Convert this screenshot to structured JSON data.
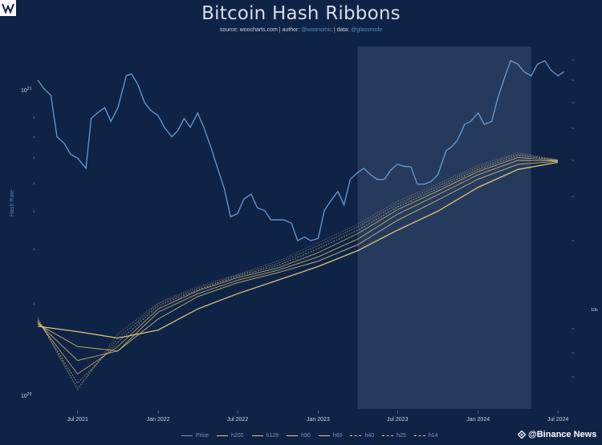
{
  "title": "Bitcoin Hash Ribbons",
  "subtitle": {
    "source_label": "source: woocharts.com",
    "sep1": " | ",
    "author_label": "author: ",
    "author": "@woonomic",
    "sep2": " | ",
    "data_label": "data: ",
    "data": "@glassnode"
  },
  "watermark": "@Binance News",
  "colors": {
    "background": "#0f2346",
    "highlight": "#2a3e62",
    "price": "#6a9bd0",
    "ribbon": "#e3cc7a",
    "text": "#c8d4e8"
  },
  "chart_data": {
    "type": "line",
    "title": "Bitcoin Hash Ribbons",
    "ylabel": "Hash Rate",
    "y_scale": "log",
    "x_ticks": [
      "Jul 2021",
      "Jan 2022",
      "Jul 2022",
      "Jan 2023",
      "Jul 2023",
      "Jan 2024",
      "Jul 2024"
    ],
    "left_axis_ticks": [
      "10^21",
      "10^20"
    ],
    "right_axis_ticks": [
      "10k"
    ],
    "highlight_region": {
      "x_start": "2023-04",
      "x_end": "2024-05"
    },
    "series": [
      {
        "name": "Price",
        "x": [
          "2021-04",
          "2021-04-15",
          "2021-05",
          "2021-05-15",
          "2021-06",
          "2021-06-15",
          "2021-07",
          "2021-07-20",
          "2021-08",
          "2021-08-15",
          "2021-09",
          "2021-09-15",
          "2021-10",
          "2021-10-20",
          "2021-11",
          "2021-11-15",
          "2021-12",
          "2021-12-15",
          "2022-01",
          "2022-01-15",
          "2022-02",
          "2022-02-15",
          "2022-03",
          "2022-03-15",
          "2022-04",
          "2022-04-15",
          "2022-05",
          "2022-05-15",
          "2022-06",
          "2022-06-15",
          "2022-07",
          "2022-07-15",
          "2022-08",
          "2022-08-15",
          "2022-09",
          "2022-09-15",
          "2022-10",
          "2022-10-15",
          "2022-11",
          "2022-11-15",
          "2022-12",
          "2022-12-15",
          "2023-01",
          "2023-01-15",
          "2023-02",
          "2023-02-15",
          "2023-03",
          "2023-03-15",
          "2023-04",
          "2023-04-15",
          "2023-05",
          "2023-05-15",
          "2023-06",
          "2023-06-15",
          "2023-07",
          "2023-07-15",
          "2023-08",
          "2023-08-15",
          "2023-09",
          "2023-09-15",
          "2023-10",
          "2023-10-20",
          "2023-11",
          "2023-11-15",
          "2023-12",
          "2023-12-15",
          "2024-01",
          "2024-01-15",
          "2024-02",
          "2024-02-15",
          "2024-03",
          "2024-03-15",
          "2024-04",
          "2024-04-15",
          "2024-05",
          "2024-05-15",
          "2024-06",
          "2024-06-15",
          "2024-07",
          "2024-07-15"
        ],
        "values": [
          60000,
          56000,
          53000,
          38000,
          36000,
          33000,
          32000,
          29500,
          44000,
          46000,
          48000,
          43000,
          48000,
          62000,
          63000,
          58000,
          50000,
          47000,
          45000,
          41000,
          38000,
          40000,
          44000,
          41000,
          46000,
          41000,
          35000,
          30000,
          25000,
          20000,
          20500,
          23000,
          24000,
          21500,
          21000,
          19500,
          19500,
          19500,
          19000,
          16500,
          17000,
          16500,
          16800,
          21000,
          23000,
          24500,
          22000,
          27000,
          28500,
          29500,
          28000,
          27000,
          27000,
          29000,
          30500,
          30000,
          29800,
          26000,
          26000,
          26500,
          28000,
          34000,
          35000,
          37000,
          42000,
          43000,
          46000,
          42000,
          43000,
          52000,
          61000,
          70000,
          68000,
          64000,
          62000,
          68000,
          70000,
          65000,
          62000,
          64000
        ]
      },
      {
        "name": "h200",
        "x": [
          "2021-04",
          "2021-07",
          "2021-10",
          "2022-01",
          "2022-04",
          "2022-07",
          "2022-10",
          "2023-01",
          "2023-04",
          "2023-07",
          "2023-10",
          "2024-01",
          "2024-04",
          "2024-07"
        ],
        "values": [
          165,
          158,
          150,
          160,
          190,
          215,
          240,
          268,
          305,
          360,
          420,
          510,
          590,
          625
        ]
      },
      {
        "name": "h128",
        "x": [
          "2021-04",
          "2021-07",
          "2021-10",
          "2022-01",
          "2022-04",
          "2022-07",
          "2022-10",
          "2023-01",
          "2023-04",
          "2023-07",
          "2023-10",
          "2024-01",
          "2024-04",
          "2024-07"
        ],
        "values": [
          168,
          140,
          135,
          175,
          210,
          235,
          255,
          280,
          320,
          390,
          460,
          545,
          615,
          630
        ]
      },
      {
        "name": "h90",
        "x": [
          "2021-04",
          "2021-07",
          "2021-10",
          "2022-01",
          "2022-04",
          "2022-07",
          "2022-10",
          "2023-01",
          "2023-04",
          "2023-07",
          "2023-10",
          "2024-01",
          "2024-04",
          "2024-07"
        ],
        "values": [
          170,
          125,
          135,
          185,
          215,
          240,
          260,
          290,
          335,
          410,
          480,
          565,
          635,
          632
        ]
      },
      {
        "name": "h60",
        "x": [
          "2021-04",
          "2021-07",
          "2021-10",
          "2022-01",
          "2022-04",
          "2022-07",
          "2022-10",
          "2023-01",
          "2023-04",
          "2023-07",
          "2023-10",
          "2024-01",
          "2024-04",
          "2024-07"
        ],
        "values": [
          172,
          112,
          140,
          190,
          220,
          245,
          265,
          300,
          350,
          425,
          495,
          580,
          650,
          634
        ]
      },
      {
        "name": "h40",
        "x": [
          "2021-04",
          "2021-07",
          "2021-10",
          "2022-01",
          "2022-04",
          "2022-07",
          "2022-10",
          "2023-01",
          "2023-04",
          "2023-07",
          "2023-10",
          "2024-01",
          "2024-04",
          "2024-07"
        ],
        "values": [
          174,
          104,
          145,
          195,
          222,
          248,
          270,
          310,
          360,
          435,
          505,
          590,
          660,
          636
        ]
      },
      {
        "name": "h25",
        "x": [
          "2021-04",
          "2021-07",
          "2021-10",
          "2022-01",
          "2022-04",
          "2022-07",
          "2022-10",
          "2023-01",
          "2023-04",
          "2023-07",
          "2023-10",
          "2024-01",
          "2024-04",
          "2024-07"
        ],
        "values": [
          176,
          100,
          150,
          198,
          225,
          250,
          275,
          318,
          370,
          445,
          515,
          600,
          668,
          637
        ]
      },
      {
        "name": "h14",
        "x": [
          "2021-04",
          "2021-07",
          "2021-10",
          "2022-01",
          "2022-04",
          "2022-07",
          "2022-10",
          "2023-01",
          "2023-04",
          "2023-07",
          "2023-10",
          "2024-01",
          "2024-04",
          "2024-07"
        ],
        "values": [
          178,
          98,
          155,
          200,
          228,
          252,
          280,
          325,
          378,
          455,
          525,
          610,
          675,
          638
        ]
      }
    ]
  }
}
